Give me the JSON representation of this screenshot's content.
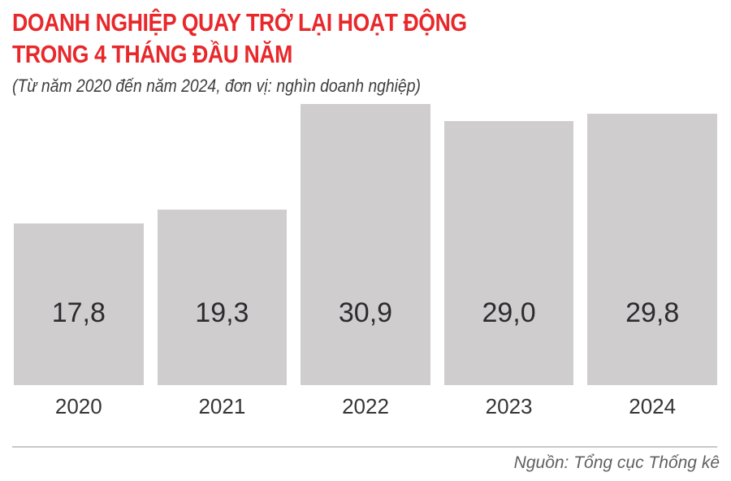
{
  "header": {
    "title_line1": "DOANH NGHIỆP QUAY TRỞ LẠI HOẠT ĐỘNG",
    "title_line2": "TRONG 4 THÁNG ĐẦU NĂM",
    "subtitle": "(Từ năm 2020 đến năm 2024, đơn vị: nghìn doanh nghiệp)"
  },
  "chart_data": {
    "type": "bar",
    "title": "DOANH NGHIỆP QUAY TRỞ LẠI HOẠT ĐỘNG TRONG 4 THÁNG ĐẦU NĂM",
    "subtitle": "(Từ năm 2020 đến năm 2024, đơn vị: nghìn doanh nghiệp)",
    "unit": "nghìn doanh nghiệp",
    "categories": [
      "2020",
      "2021",
      "2022",
      "2023",
      "2024"
    ],
    "values": [
      17.8,
      19.3,
      30.9,
      29.0,
      29.8
    ],
    "value_labels": [
      "17,8",
      "19,3",
      "30,9",
      "29,0",
      "29,8"
    ],
    "xlabel": "",
    "ylabel": "",
    "ylim": [
      0,
      31.6
    ],
    "grid": false,
    "legend": false,
    "bar_color": "#d0cdcf"
  },
  "footer": {
    "source": "Nguồn: Tổng cục Thống kê"
  },
  "colors": {
    "title_red": "#e8282b",
    "bar_gray": "#d0cdcf",
    "value_text": "#2c2c2e",
    "year_text": "#353537",
    "subtitle_text": "#3f3f41",
    "source_text": "#606064",
    "rule_gray": "#c8c6c9",
    "background": "#ffffff"
  }
}
